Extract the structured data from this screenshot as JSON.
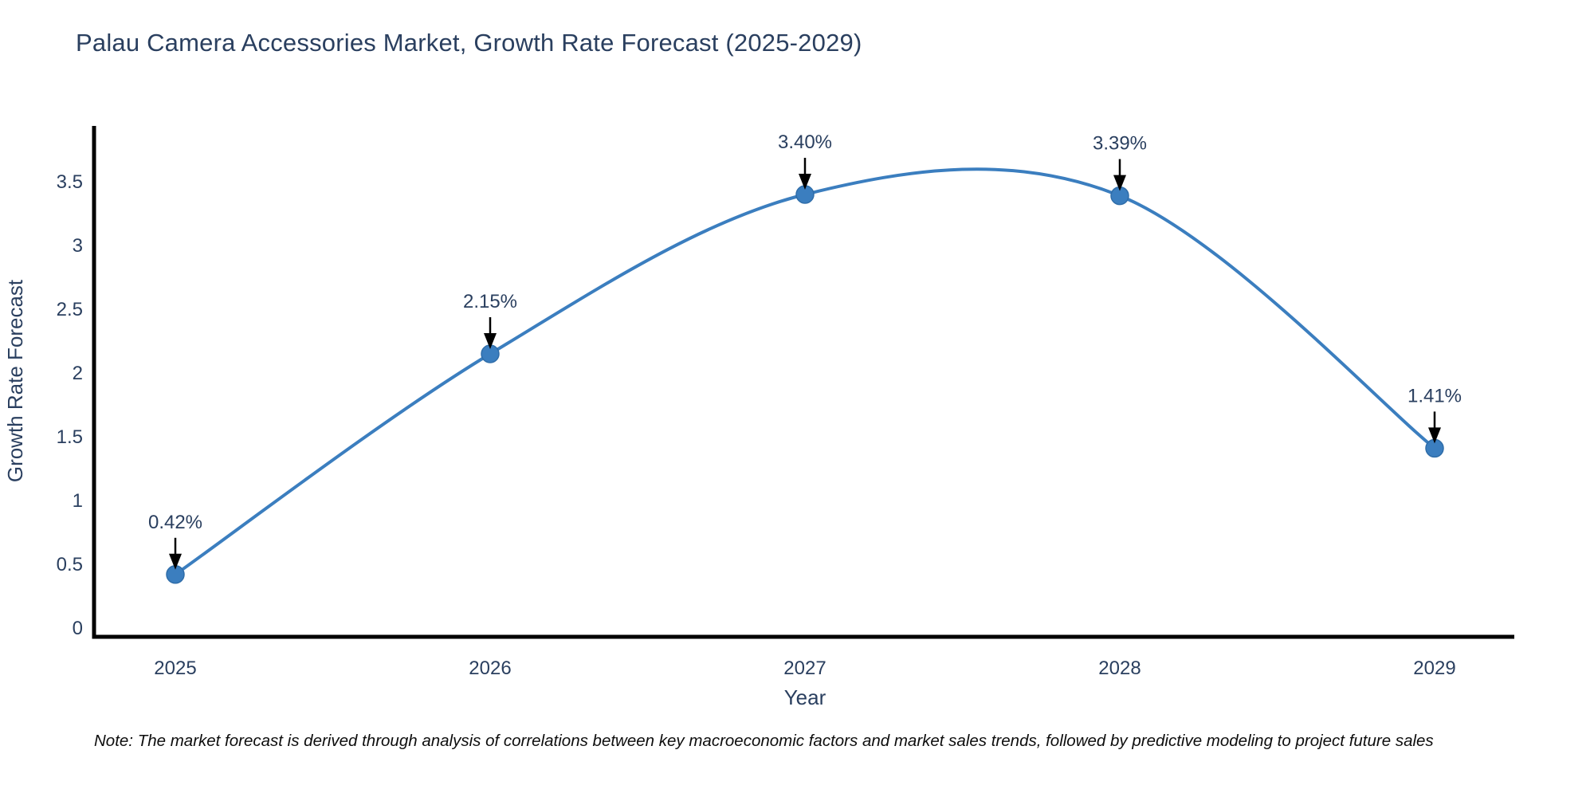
{
  "title": "Palau Camera Accessories Market, Growth Rate Forecast (2025-2029)",
  "note": "Note: The market forecast is derived through analysis of correlations between key macroeconomic factors and market sales trends, followed by predictive modeling to project future sales",
  "colors": {
    "title_text": "#2a3f5f",
    "tick_text": "#2a3f5f",
    "line": "#3b7ebf",
    "marker": "#3b7ebf",
    "marker_edge": "#2f6da9",
    "axis": "#000000",
    "annotation_arrow": "#000000",
    "background": "#ffffff"
  },
  "chart_data": {
    "type": "line",
    "title": "Palau Camera Accessories Market, Growth Rate Forecast (2025-2029)",
    "categories": [
      "2025",
      "2026",
      "2027",
      "2028",
      "2029"
    ],
    "series": [
      {
        "name": "Growth Rate Forecast",
        "values": [
          0.42,
          2.15,
          3.4,
          3.39,
          1.41
        ]
      }
    ],
    "point_labels": [
      "0.42%",
      "2.15%",
      "3.40%",
      "3.39%",
      "1.41%"
    ],
    "xlabel": "Year",
    "ylabel": "Growth Rate Forecast",
    "ylim": [
      0,
      3.5
    ],
    "yticks": [
      0,
      0.5,
      1,
      1.5,
      2,
      2.5,
      3,
      3.5
    ],
    "ytick_labels": [
      "0",
      "0.5",
      "1",
      "1.5",
      "2",
      "2.5",
      "3",
      "3.5"
    ],
    "grid": false,
    "legend": "none",
    "line_shape": "spline",
    "annotations": "value labels with down arrows above each point"
  }
}
